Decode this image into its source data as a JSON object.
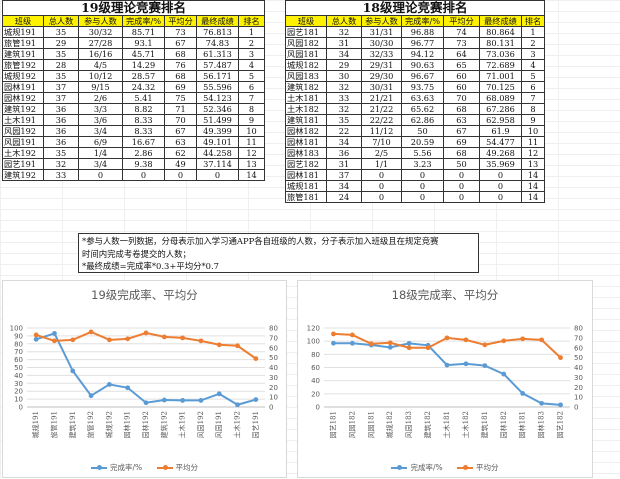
{
  "table19": {
    "title": "19级理论竞赛排名",
    "headers": [
      "班级",
      "总人数",
      "参与人数",
      "完成率/%",
      "平均分",
      "最终成绩",
      "排名"
    ],
    "rows": [
      [
        "城规191",
        "35",
        "30/32",
        "85.71",
        "73",
        "76.813",
        "1"
      ],
      [
        "旅管191",
        "29",
        "27/28",
        "93.1",
        "67",
        "74.83",
        "2"
      ],
      [
        "建筑191",
        "35",
        "16/16",
        "45.71",
        "68",
        "61.313",
        "3"
      ],
      [
        "旅管192",
        "28",
        "4/5",
        "14.29",
        "76",
        "57.487",
        "4"
      ],
      [
        "城规192",
        "35",
        "10/12",
        "28.57",
        "68",
        "56.171",
        "5"
      ],
      [
        "园林191",
        "37",
        "9/15",
        "24.32",
        "69",
        "55.596",
        "6"
      ],
      [
        "园林192",
        "37",
        "2/6",
        "5.41",
        "75",
        "54.123",
        "7"
      ],
      [
        "建筑192",
        "36",
        "3/3",
        "8.82",
        "71",
        "52.346",
        "8"
      ],
      [
        "土木191",
        "36",
        "3/6",
        "8.33",
        "70",
        "51.499",
        "9"
      ],
      [
        "风园192",
        "36",
        "3/4",
        "8.33",
        "67",
        "49.399",
        "10"
      ],
      [
        "风园191",
        "36",
        "6/9",
        "16.67",
        "63",
        "49.101",
        "11"
      ],
      [
        "土木192",
        "35",
        "1/4",
        "2.86",
        "62",
        "44.258",
        "12"
      ],
      [
        "园艺191",
        "32",
        "3/4",
        "9.38",
        "49",
        "37.114",
        "13"
      ],
      [
        "建筑192",
        "33",
        "0",
        "0",
        "0",
        "0",
        "14"
      ]
    ]
  },
  "table18": {
    "title": "18级理论竞赛排名",
    "headers": [
      "班级",
      "总人数",
      "参与人数",
      "完成率/%",
      "平均分",
      "最终成绩",
      "排名"
    ],
    "rows": [
      [
        "园艺181",
        "32",
        "31/31",
        "96.88",
        "74",
        "80.864",
        "1"
      ],
      [
        "风园182",
        "31",
        "30/30",
        "96.77",
        "73",
        "80.131",
        "2"
      ],
      [
        "风园181",
        "34",
        "32/33",
        "94.12",
        "64",
        "73.036",
        "3"
      ],
      [
        "城规182",
        "29",
        "29/31",
        "90.63",
        "65",
        "72.689",
        "4"
      ],
      [
        "风园183",
        "30",
        "29/30",
        "96.67",
        "60",
        "71.001",
        "5"
      ],
      [
        "建筑182",
        "32",
        "30/31",
        "93.75",
        "60",
        "70.125",
        "6"
      ],
      [
        "土木181",
        "33",
        "21/21",
        "63.63",
        "70",
        "68.089",
        "7"
      ],
      [
        "土木182",
        "32",
        "21/22",
        "65.62",
        "68",
        "67.286",
        "8"
      ],
      [
        "建筑181",
        "35",
        "22/22",
        "62.86",
        "63",
        "62.958",
        "9"
      ],
      [
        "园林182",
        "22",
        "11/12",
        "50",
        "67",
        "61.9",
        "10"
      ],
      [
        "园林181",
        "34",
        "7/10",
        "20.59",
        "69",
        "54.477",
        "11"
      ],
      [
        "园林183",
        "36",
        "2/5",
        "5.56",
        "68",
        "49.268",
        "12"
      ],
      [
        "园艺182",
        "31",
        "1/1",
        "3.23",
        "50",
        "35.969",
        "13"
      ],
      [
        "园林181",
        "37",
        "0",
        "0",
        "0",
        "0",
        "14"
      ],
      [
        "城规181",
        "34",
        "0",
        "0",
        "0",
        "0",
        "14"
      ],
      [
        "旅管181",
        "24",
        "0",
        "0",
        "0",
        "0",
        "14"
      ]
    ]
  },
  "note": {
    "line1": "*参与人数一列数据，分母表示加入学习通APP各自班级的人数，分子表示加入班级且在规定竞赛",
    "line2": "时间内完成考卷提交的人数；",
    "line3": "*最终成绩=完成率*0.3+平均分*0.7"
  },
  "colors": {
    "completion": "#5b9bd5",
    "average": "#ed7d31",
    "header_fill": "#fff200"
  },
  "chart_data": [
    {
      "type": "line",
      "title": "19级完成率、平均分",
      "categories": [
        "城规191",
        "旅管191",
        "建筑191",
        "旅管192",
        "城规192",
        "园林191",
        "园林192",
        "建筑192",
        "土木191",
        "风园192",
        "风园191",
        "土木192",
        "园艺191"
      ],
      "series": [
        {
          "name": "完成率/%",
          "axis": "left",
          "values": [
            85.71,
            93.1,
            45.71,
            14.29,
            28.57,
            24.32,
            5.41,
            8.82,
            8.33,
            8.33,
            16.67,
            2.86,
            9.38
          ]
        },
        {
          "name": "平均分",
          "axis": "right",
          "values": [
            73,
            67,
            68,
            76,
            68,
            69,
            75,
            71,
            70,
            67,
            63,
            62,
            49
          ]
        }
      ],
      "yleft": {
        "min": 0,
        "max": 100,
        "ticks": [
          0,
          10,
          20,
          30,
          40,
          50,
          60,
          70,
          80,
          90,
          100
        ]
      },
      "yright": {
        "min": 0,
        "max": 80,
        "ticks": [
          0,
          10,
          20,
          30,
          40,
          50,
          60,
          70,
          80
        ]
      },
      "legend": "bottom"
    },
    {
      "type": "line",
      "title": "18级完成率、平均分",
      "categories": [
        "园艺181",
        "风园182",
        "风园181",
        "城规182",
        "风园183",
        "建筑182",
        "土木181",
        "土木182",
        "建筑181",
        "园林182",
        "园林181",
        "园林183",
        "园艺182"
      ],
      "series": [
        {
          "name": "完成率/%",
          "axis": "left",
          "values": [
            96.88,
            96.77,
            94.12,
            90.63,
            96.67,
            93.75,
            63.63,
            65.62,
            62.86,
            50,
            20.59,
            5.56,
            3.23
          ]
        },
        {
          "name": "平均分",
          "axis": "right",
          "values": [
            74,
            73,
            64,
            65,
            60,
            60,
            70,
            68,
            63,
            67,
            69,
            68,
            50
          ]
        }
      ],
      "yleft": {
        "min": 0,
        "max": 120,
        "ticks": [
          0,
          20,
          40,
          60,
          80,
          100,
          120
        ]
      },
      "yright": {
        "min": 0,
        "max": 80,
        "ticks": [
          0,
          10,
          20,
          30,
          40,
          50,
          60,
          70,
          80
        ]
      },
      "legend": "bottom"
    }
  ]
}
